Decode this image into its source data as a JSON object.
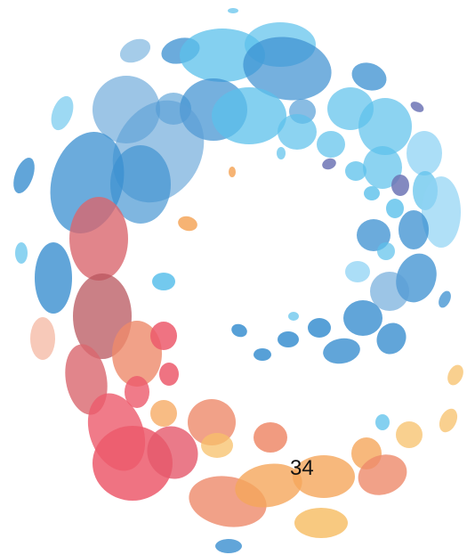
{
  "page": {
    "number": "34"
  },
  "graphic": {
    "type": "decorative-logo",
    "description_name": "spiral-of-ellipses-logo",
    "colors": {
      "light_blue": "#5bc0eb",
      "mid_blue": "#3a8fd0",
      "pale_blue": "#8fd3f4",
      "purple": "#6d74b5",
      "rose": "#d9666e",
      "red": "#ec5a6c",
      "salmon": "#ee8a6a",
      "orange": "#f5a65b",
      "light_orange": "#f7c06a",
      "peach": "#f4b7a2"
    }
  }
}
